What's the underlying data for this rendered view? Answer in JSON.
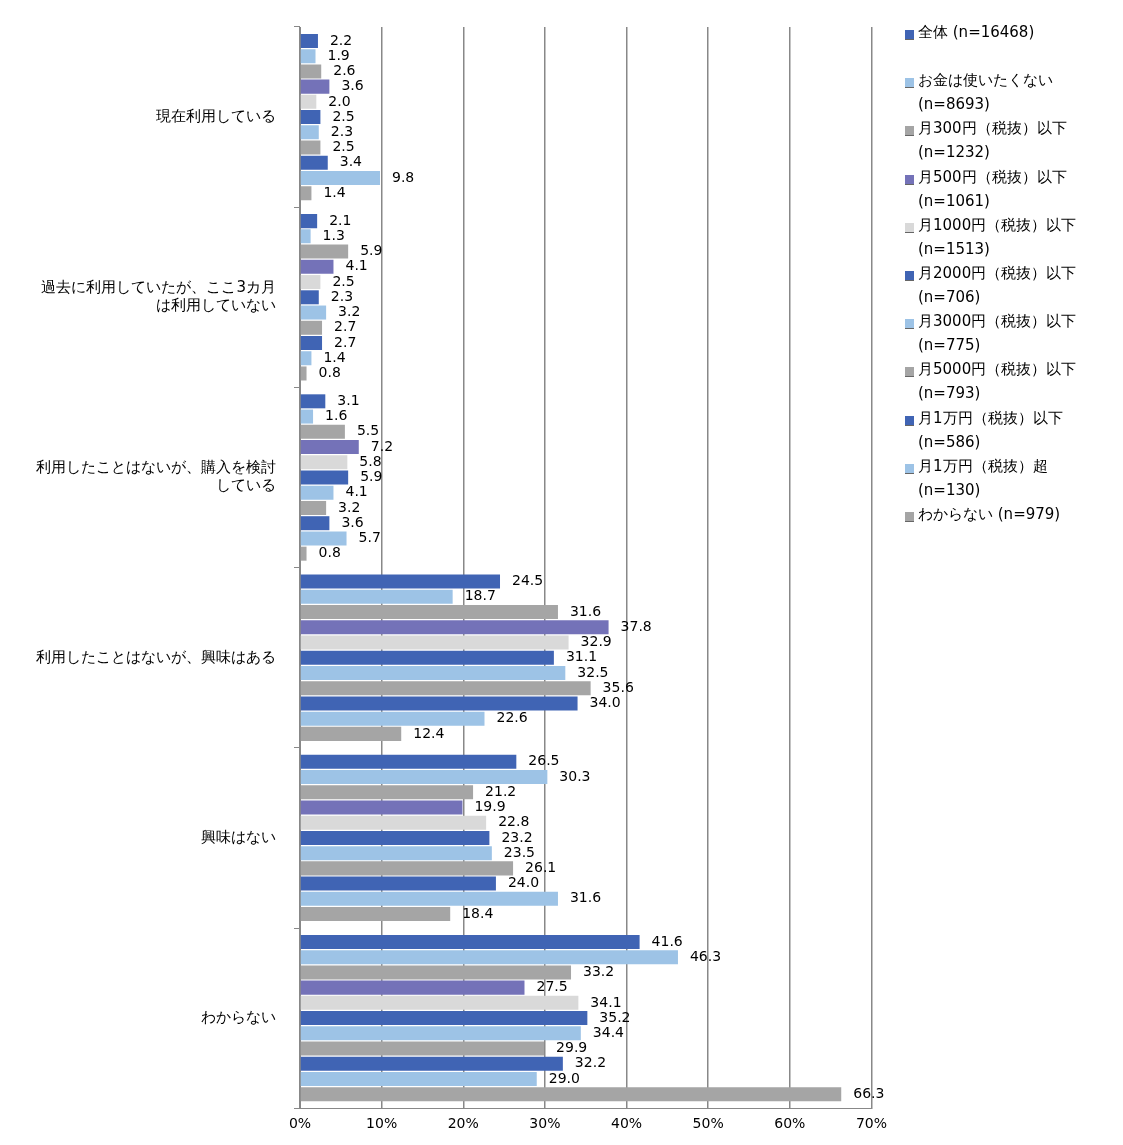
{
  "chart_data": {
    "type": "bar",
    "orientation": "horizontal",
    "categories": [
      "現在利用している",
      "過去に利用していたが、ここ3カ月は利用していない",
      "利用したことはないが、購入を検討している",
      "利用したことはないが、興味はある",
      "興味はない",
      "わからない"
    ],
    "series": [
      {
        "name": "全体 (n=16468)",
        "color": "#4064b4",
        "values": [
          2.2,
          2.1,
          3.1,
          24.5,
          26.5,
          41.6
        ],
        "value_labels": [
          "2.2",
          "2.1",
          "3.1",
          "24.5",
          "26.5",
          "41.6"
        ]
      },
      {
        "name": "お金は使いたくない (n=8693)",
        "color": "#9dc3e6",
        "values": [
          1.9,
          1.3,
          1.6,
          18.7,
          30.3,
          46.3
        ],
        "value_labels": [
          "1.9",
          "1.3",
          "1.6",
          "18.7",
          "30.3",
          "46.3"
        ]
      },
      {
        "name": "月300円（税抜）以下 (n=1232)",
        "color": "#a5a5a5",
        "values": [
          2.6,
          5.9,
          5.5,
          31.6,
          21.2,
          33.2
        ],
        "value_labels": [
          "2.6",
          "5.9",
          "5.5",
          "31.6",
          "21.2",
          "33.2"
        ]
      },
      {
        "name": "月500円（税抜）以下 (n=1061)",
        "color": "#7472b8",
        "values": [
          3.6,
          4.1,
          7.2,
          37.8,
          19.9,
          27.5
        ],
        "value_labels": [
          "3.6",
          "4.1",
          "7.2",
          "37.8",
          "19.9",
          "27.5"
        ]
      },
      {
        "name": "月1000円（税抜）以下 (n=1513)",
        "color": "#d9d9d9",
        "values": [
          2.0,
          2.5,
          5.8,
          32.9,
          22.8,
          34.1
        ],
        "value_labels": [
          "2.0",
          "2.5",
          "5.8",
          "32.9",
          "22.8",
          "34.1"
        ]
      },
      {
        "name": "月2000円（税抜）以下 (n=706)",
        "color": "#4064b4",
        "values": [
          2.5,
          2.3,
          5.9,
          31.1,
          23.2,
          35.2
        ],
        "value_labels": [
          "2.5",
          "2.3",
          "5.9",
          "31.1",
          "23.2",
          "35.2"
        ]
      },
      {
        "name": "月3000円（税抜）以下 (n=775)",
        "color": "#9dc3e6",
        "values": [
          2.3,
          3.2,
          4.1,
          32.5,
          23.5,
          34.4
        ],
        "value_labels": [
          "2.3",
          "3.2",
          "4.1",
          "32.5",
          "23.5",
          "34.4"
        ]
      },
      {
        "name": "月5000円（税抜）以下 (n=793)",
        "color": "#a5a5a5",
        "values": [
          2.5,
          2.7,
          3.2,
          35.6,
          26.1,
          29.9
        ],
        "value_labels": [
          "2.5",
          "2.7",
          "3.2",
          "35.6",
          "26.1",
          "29.9"
        ]
      },
      {
        "name": "月1万円（税抜）以下 (n=586)",
        "color": "#4064b4",
        "values": [
          3.4,
          2.7,
          3.6,
          34.0,
          24.0,
          32.2
        ],
        "value_labels": [
          "3.4",
          "2.7",
          "3.6",
          "34.0",
          "24.0",
          "32.2"
        ]
      },
      {
        "name": "月1万円（税抜）超 (n=130)",
        "color": "#9dc3e6",
        "values": [
          9.8,
          1.4,
          5.7,
          22.6,
          31.6,
          29.0
        ],
        "value_labels": [
          "9.8",
          "1.4",
          "5.7",
          "22.6",
          "31.6",
          "29.0"
        ]
      },
      {
        "name": "わからない (n=979)",
        "color": "#a5a5a5",
        "values": [
          1.4,
          0.8,
          0.8,
          12.4,
          18.4,
          66.3
        ],
        "value_labels": [
          "1.4",
          "0.8",
          "0.8",
          "12.4",
          "18.4",
          "66.3"
        ]
      }
    ],
    "xlim": [
      0,
      70
    ],
    "xticks": [
      {
        "value": 0,
        "label": "0%"
      },
      {
        "value": 10,
        "label": "10%"
      },
      {
        "value": 20,
        "label": "20%"
      },
      {
        "value": 30,
        "label": "30%"
      },
      {
        "value": 40,
        "label": "40%"
      },
      {
        "value": 50,
        "label": "50%"
      },
      {
        "value": 60,
        "label": "60%"
      },
      {
        "value": 70,
        "label": "70%"
      }
    ],
    "grid": "x",
    "legend": "right"
  }
}
